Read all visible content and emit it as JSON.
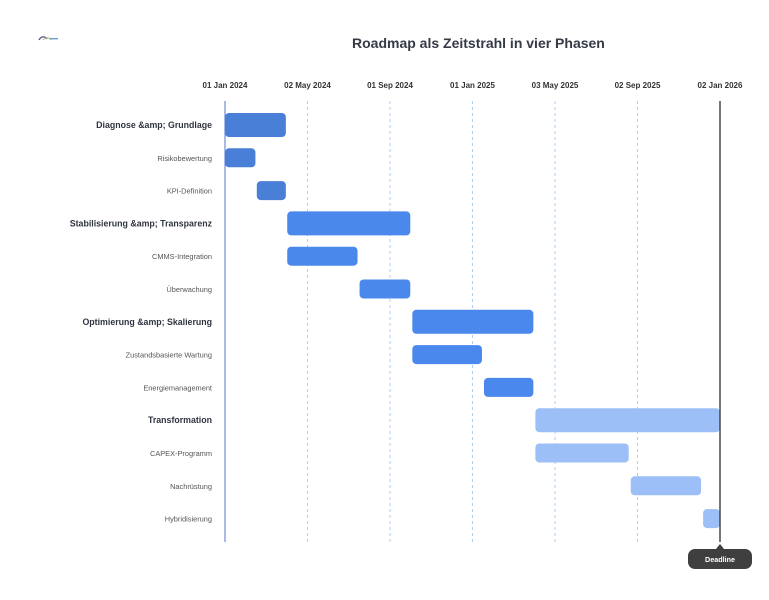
{
  "title": "Roadmap als Zeitstrahl in vier Phasen",
  "logo": {
    "icon": "company-logo-icon",
    "colors": [
      "#5b4c96",
      "#9ec86a",
      "#6f9ad8"
    ]
  },
  "deadline": {
    "label": "Deadline",
    "date": "2026-01-02"
  },
  "chart_data": {
    "type": "gantt",
    "title": "Roadmap als Zeitstrahl in vier Phasen",
    "xlim": [
      "2024-01-01",
      "2026-01-02"
    ],
    "x_ticks": [
      {
        "date": "2024-01-01",
        "label": "01 Jan 2024"
      },
      {
        "date": "2024-05-02",
        "label": "02 May 2024"
      },
      {
        "date": "2024-09-01",
        "label": "01 Sep 2024"
      },
      {
        "date": "2025-01-01",
        "label": "01 Jan 2025"
      },
      {
        "date": "2025-05-03",
        "label": "03 May 2025"
      },
      {
        "date": "2025-09-02",
        "label": "02 Sep 2025"
      },
      {
        "date": "2026-01-02",
        "label": "02 Jan 2026"
      }
    ],
    "grid": true,
    "rows": [
      {
        "label": "Diagnose &amp; Grundlage",
        "kind": "phase",
        "start": "2024-01-01",
        "end": "2024-03-31",
        "color": "#4a7fd8"
      },
      {
        "label": "Risikobewertung",
        "kind": "task",
        "start": "2024-01-01",
        "end": "2024-02-15",
        "color": "#4a7fd8"
      },
      {
        "label": "KPI-Definition",
        "kind": "task",
        "start": "2024-02-17",
        "end": "2024-03-31",
        "color": "#4a7fd8"
      },
      {
        "label": "Stabilisierung &amp; Transparenz",
        "kind": "phase",
        "start": "2024-04-02",
        "end": "2024-10-01",
        "color": "#4a88eb"
      },
      {
        "label": "CMMS-Integration",
        "kind": "task",
        "start": "2024-04-02",
        "end": "2024-07-15",
        "color": "#4a88eb"
      },
      {
        "label": "Überwachung",
        "kind": "task",
        "start": "2024-07-18",
        "end": "2024-10-01",
        "color": "#4a88eb"
      },
      {
        "label": "Optimierung &amp; Skalierung",
        "kind": "phase",
        "start": "2024-10-04",
        "end": "2025-04-01",
        "color": "#4b88ee"
      },
      {
        "label": "Zustandsbasierte Wartung",
        "kind": "task",
        "start": "2024-10-04",
        "end": "2025-01-15",
        "color": "#4b88ee"
      },
      {
        "label": "Energiemanagement",
        "kind": "task",
        "start": "2025-01-18",
        "end": "2025-04-01",
        "color": "#4b88ee"
      },
      {
        "label": "Transformation",
        "kind": "phase",
        "start": "2025-04-04",
        "end": "2026-01-02",
        "color": "#9bbff6"
      },
      {
        "label": "CAPEX-Programm",
        "kind": "task",
        "start": "2025-04-04",
        "end": "2025-08-20",
        "color": "#9bbff6"
      },
      {
        "label": "Nachrüstung",
        "kind": "task",
        "start": "2025-08-23",
        "end": "2025-12-05",
        "color": "#9bbff6"
      },
      {
        "label": "Hybridisierung",
        "kind": "task",
        "start": "2025-12-08",
        "end": "2026-01-02",
        "color": "#9bbff6"
      }
    ]
  }
}
